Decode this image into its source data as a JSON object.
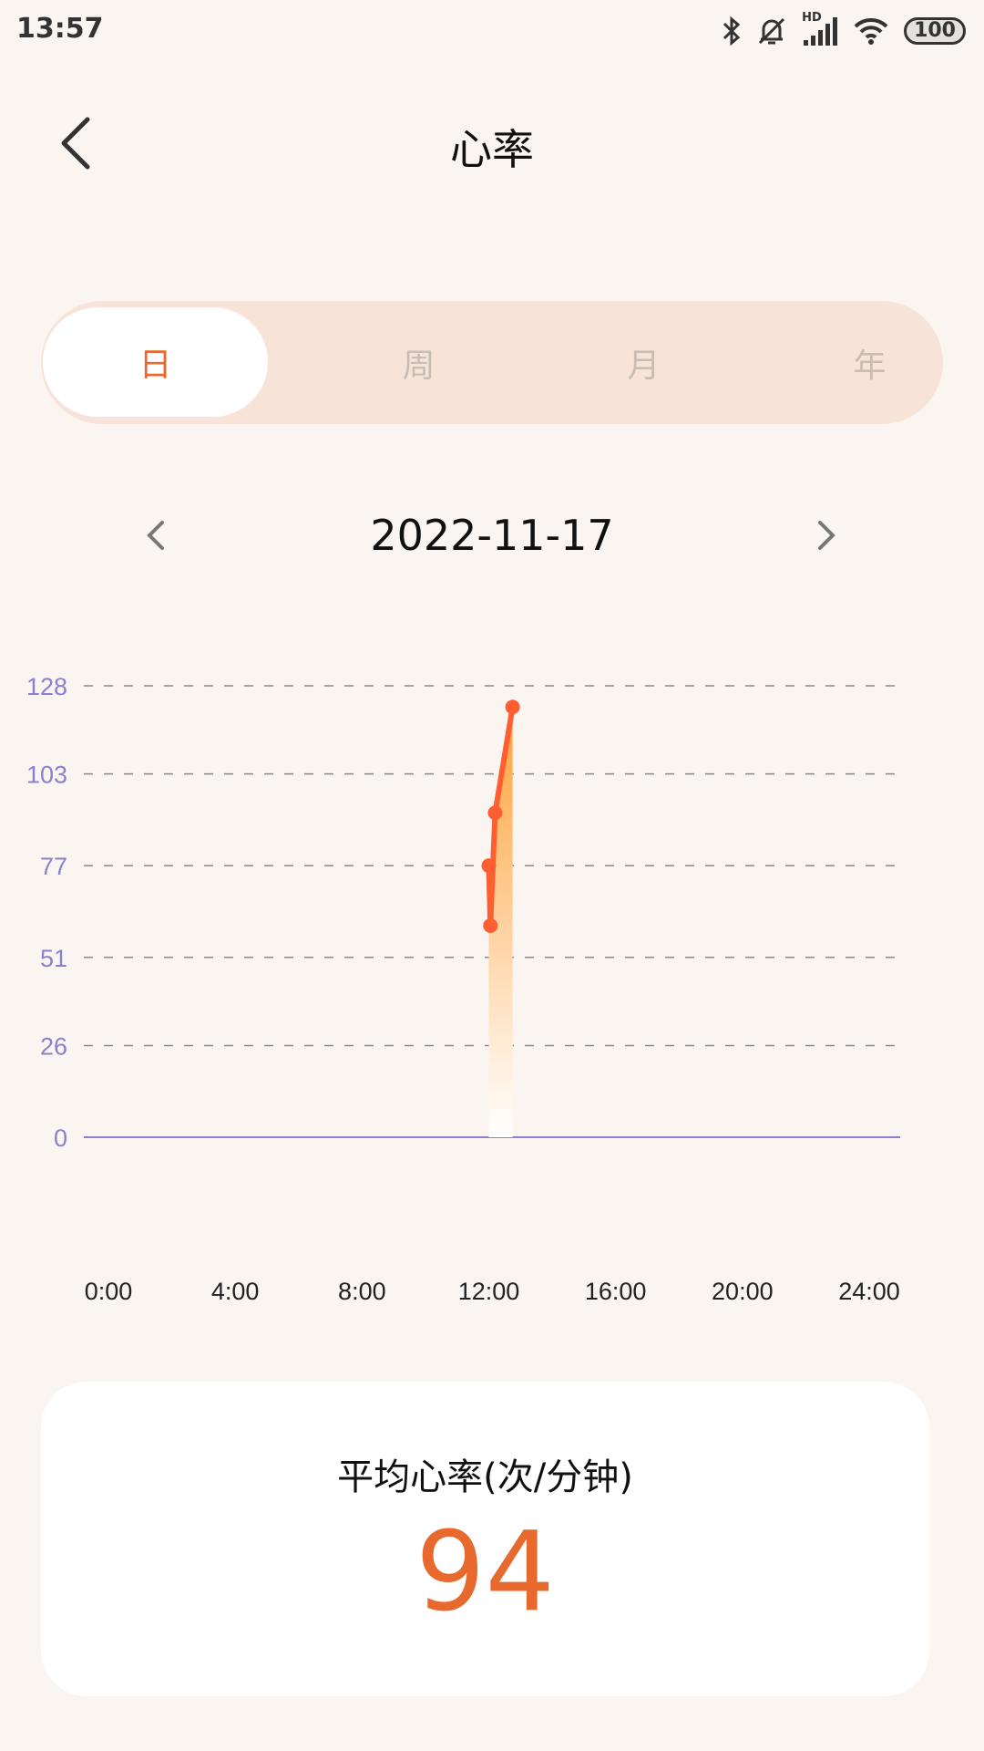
{
  "status_bar": {
    "time": "13:57",
    "battery": "100",
    "network_label": "HD"
  },
  "header": {
    "title": "心率"
  },
  "tabs": [
    {
      "label": "日",
      "active": true
    },
    {
      "label": "周"
    },
    {
      "label": "月"
    },
    {
      "label": "年"
    }
  ],
  "date_nav": {
    "date": "2022-11-17"
  },
  "colors": {
    "accent": "#e8692e",
    "line": "#ff5e33",
    "axis_label": "#8a7fd0",
    "background": "#faf5f0"
  },
  "chart_data": {
    "type": "area",
    "x_unit": "hour",
    "xlim": [
      0,
      24
    ],
    "ylim": [
      0,
      128
    ],
    "y_ticks": [
      "0",
      "26",
      "51",
      "77",
      "103",
      "128"
    ],
    "x_ticks": [
      "0:00",
      "4:00",
      "8:00",
      "12:00",
      "16:00",
      "20:00",
      "24:00"
    ],
    "grid": true,
    "points": [
      {
        "x": 12.0,
        "y": 77
      },
      {
        "x": 12.05,
        "y": 60
      },
      {
        "x": 12.2,
        "y": 92
      },
      {
        "x": 12.75,
        "y": 122
      }
    ]
  },
  "summary": {
    "label": "平均心率(次/分钟)",
    "value": "94"
  }
}
